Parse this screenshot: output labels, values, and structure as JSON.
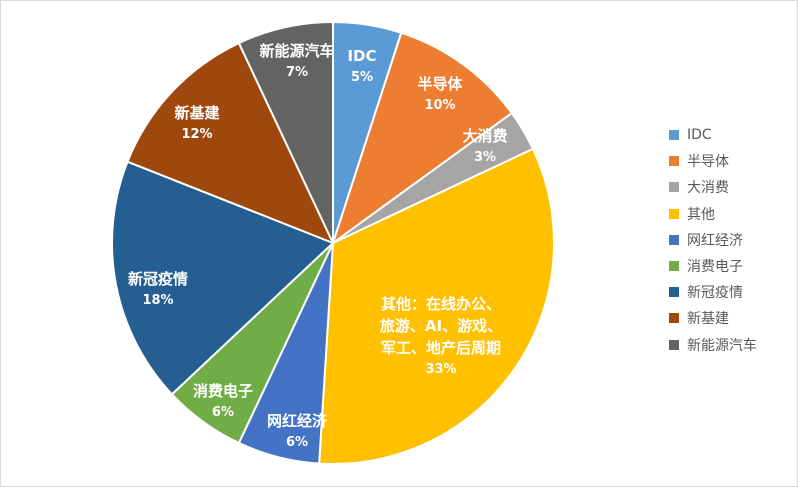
{
  "chart_data": {
    "type": "pie",
    "slices": [
      {
        "name": "IDC",
        "value": 5,
        "label": "5%",
        "color": "#5b9bd5"
      },
      {
        "name": "半导体",
        "value": 10,
        "label": "10%",
        "color": "#ed7d31"
      },
      {
        "name": "大消费",
        "value": 3,
        "label": "3%",
        "color": "#a5a5a5"
      },
      {
        "name": "其他",
        "value": 33,
        "label": "33%",
        "color": "#ffc000",
        "data_label": [
          "其他：在线办公、",
          "旅游、AI、游戏、",
          "军工、地产后周期"
        ]
      },
      {
        "name": "网红经济",
        "value": 6,
        "label": "6%",
        "color": "#4472c4"
      },
      {
        "name": "消费电子",
        "value": 6,
        "label": "6%",
        "color": "#70ad47"
      },
      {
        "name": "新冠疫情",
        "value": 18,
        "label": "18%",
        "color": "#255e91"
      },
      {
        "name": "新基建",
        "value": 12,
        "label": "12%",
        "color": "#9e480e"
      },
      {
        "name": "新能源汽车",
        "value": 7,
        "label": "7%",
        "color": "#636363"
      }
    ],
    "legend_position": "right"
  }
}
